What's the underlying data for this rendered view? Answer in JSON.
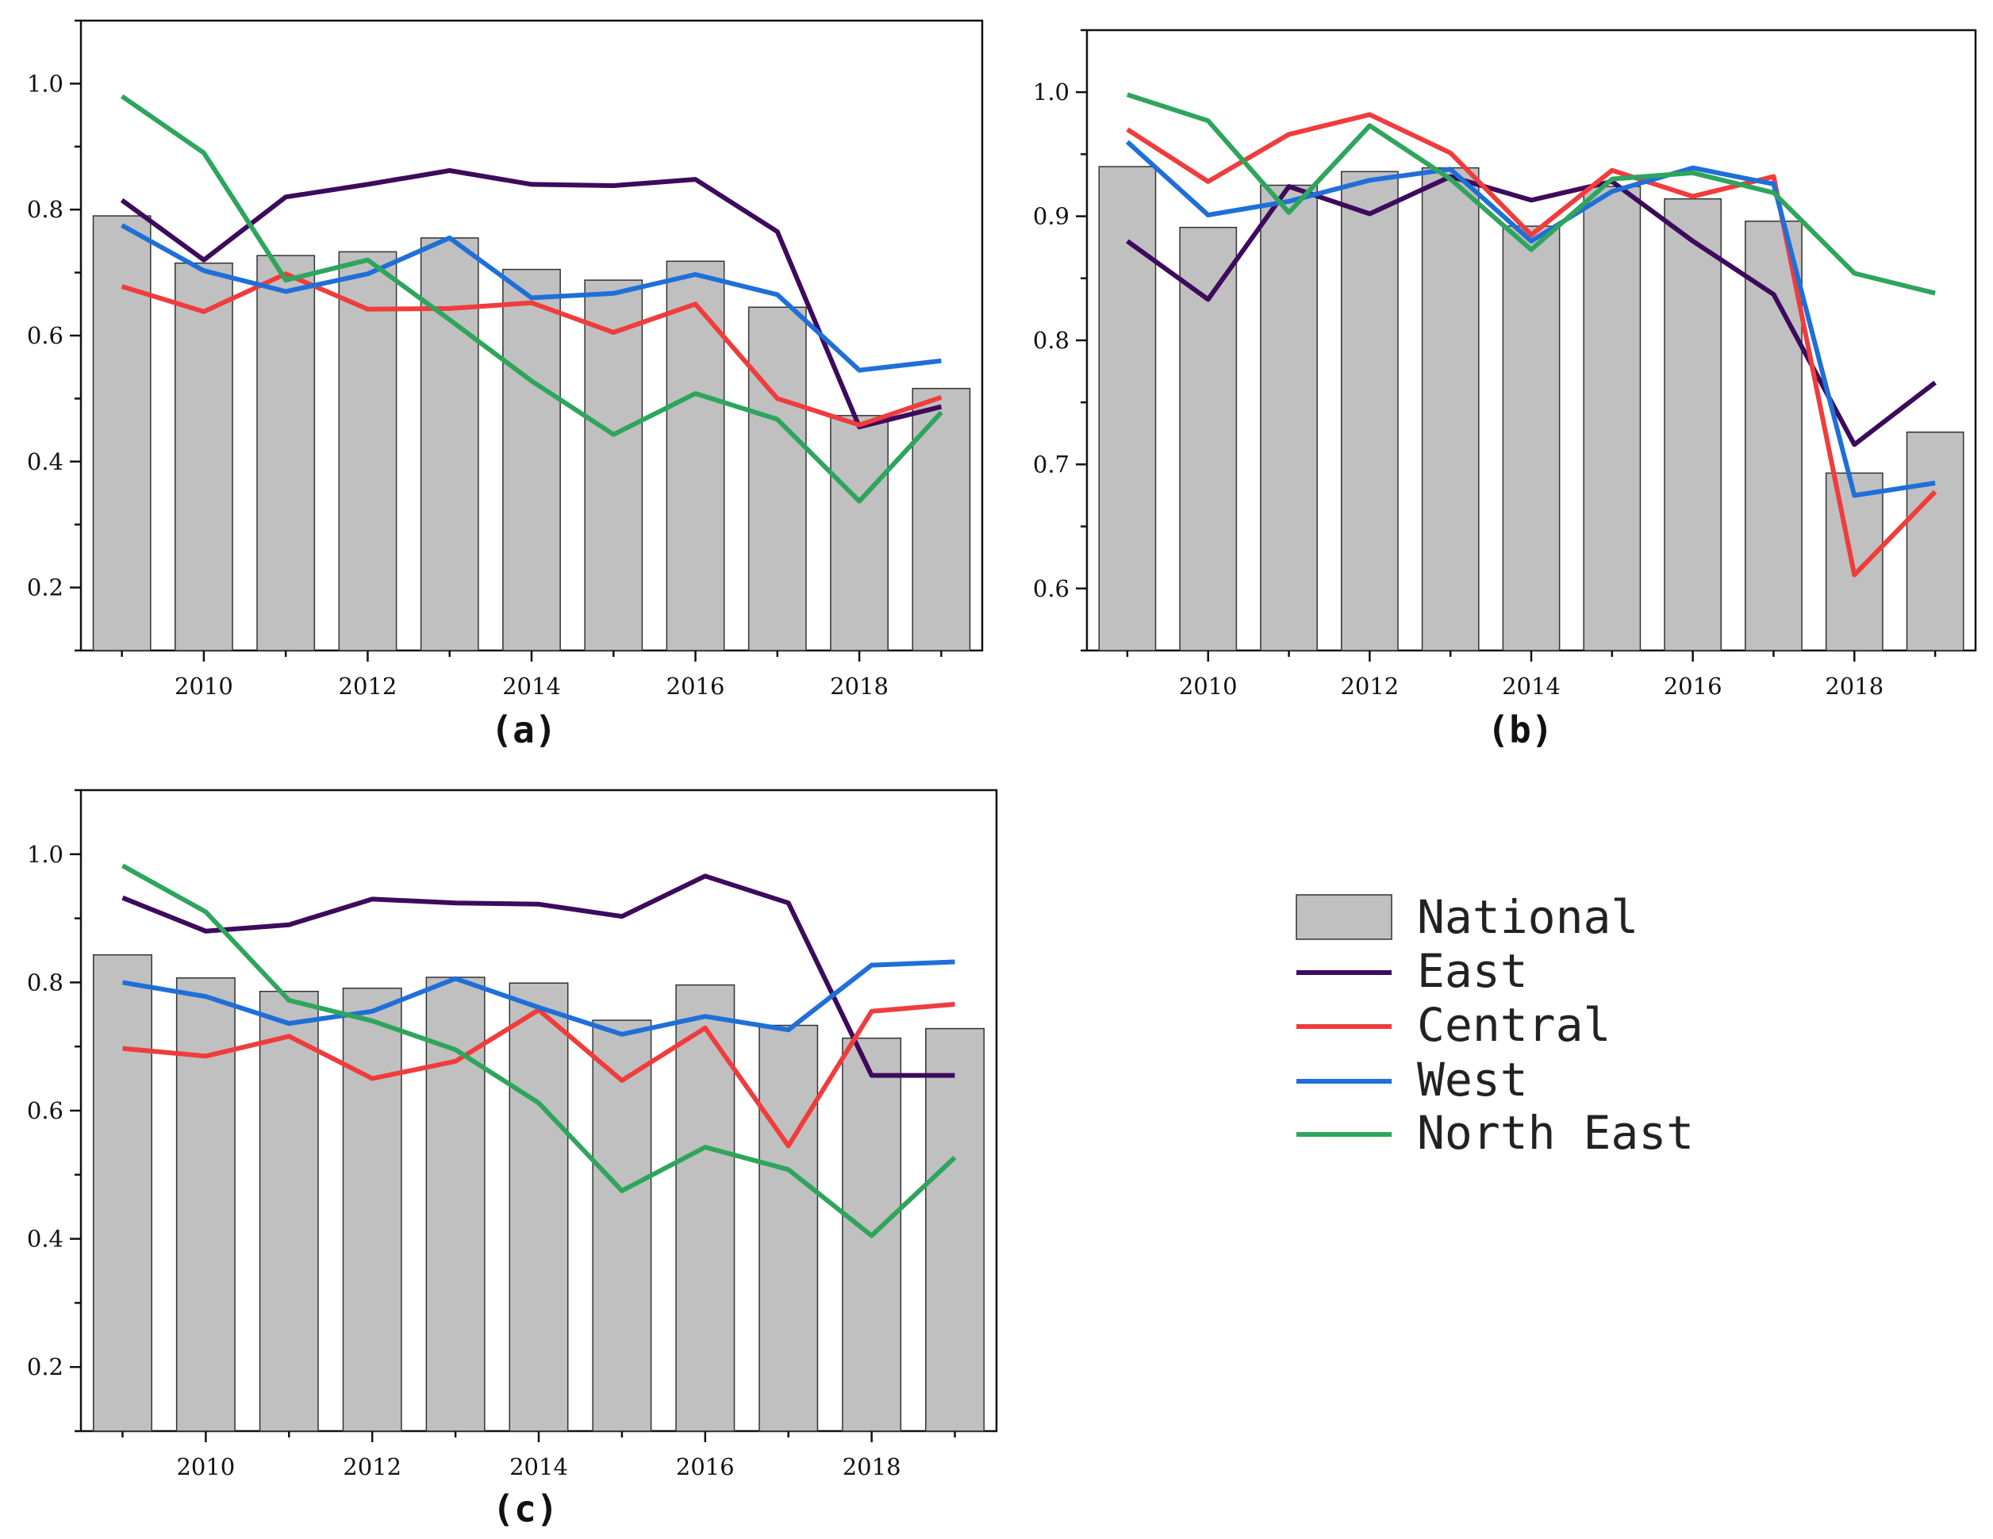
{
  "figure": {
    "panel_labels": [
      "(a)",
      "(b)",
      "(c)"
    ]
  },
  "legend": {
    "items": [
      {
        "label": "National",
        "kind": "bar",
        "color": "#c0c0c0"
      },
      {
        "label": "East",
        "kind": "line",
        "color": "#3d0a5c"
      },
      {
        "label": "Central",
        "kind": "line",
        "color": "#f03c3c"
      },
      {
        "label": "West",
        "kind": "line",
        "color": "#1f6fd8"
      },
      {
        "label": "North East",
        "kind": "line",
        "color": "#2ea55c"
      }
    ]
  },
  "chart_data": [
    {
      "type": "bar",
      "panel": "(a)",
      "x": [
        2009,
        2010,
        2011,
        2012,
        2013,
        2014,
        2015,
        2016,
        2017,
        2018,
        2019
      ],
      "ylim": [
        0.1,
        1.1
      ],
      "yticks": [
        0.2,
        0.4,
        0.6,
        0.8,
        1.0
      ],
      "ytick_labels": [
        "0.2",
        "0.4",
        "0.6",
        "0.8",
        "1.0"
      ],
      "xticks": [
        2010,
        2012,
        2014,
        2016,
        2018
      ],
      "xtick_labels": [
        "2010",
        "2012",
        "2014",
        "2016",
        "2018"
      ],
      "xlabel": "",
      "ylabel": "",
      "bars": {
        "name": "National",
        "color": "#c0c0c0",
        "values": [
          0.79,
          0.715,
          0.727,
          0.733,
          0.755,
          0.705,
          0.688,
          0.718,
          0.645,
          0.473,
          0.516
        ]
      },
      "series": [
        {
          "name": "East",
          "color": "#3d0a5c",
          "values": [
            0.815,
            0.72,
            0.82,
            0.84,
            0.862,
            0.84,
            0.838,
            0.848,
            0.765,
            0.455,
            0.487
          ]
        },
        {
          "name": "Central",
          "color": "#f03c3c",
          "values": [
            0.678,
            0.638,
            0.698,
            0.642,
            0.643,
            0.652,
            0.605,
            0.65,
            0.5,
            0.458,
            0.502
          ]
        },
        {
          "name": "West",
          "color": "#1f6fd8",
          "values": [
            0.775,
            0.703,
            0.67,
            0.698,
            0.755,
            0.66,
            0.667,
            0.697,
            0.665,
            0.545,
            0.56
          ]
        },
        {
          "name": "North East",
          "color": "#2ea55c",
          "values": [
            0.98,
            0.89,
            0.688,
            0.72,
            0.625,
            0.528,
            0.443,
            0.508,
            0.467,
            0.337,
            0.478
          ]
        }
      ]
    },
    {
      "type": "bar",
      "panel": "(b)",
      "x": [
        2009,
        2010,
        2011,
        2012,
        2013,
        2014,
        2015,
        2016,
        2017,
        2018,
        2019
      ],
      "ylim": [
        0.55,
        1.05
      ],
      "yticks": [
        0.6,
        0.7,
        0.8,
        0.9,
        1.0
      ],
      "ytick_labels": [
        "0.6",
        "0.7",
        "0.8",
        "0.9",
        "1.0"
      ],
      "xticks": [
        2010,
        2012,
        2014,
        2016,
        2018
      ],
      "xtick_labels": [
        "2010",
        "2012",
        "2014",
        "2016",
        "2018"
      ],
      "xlabel": "",
      "ylabel": "",
      "bars": {
        "name": "National",
        "color": "#c0c0c0",
        "values": [
          0.94,
          0.891,
          0.925,
          0.936,
          0.939,
          0.892,
          0.924,
          0.914,
          0.896,
          0.693,
          0.726
        ]
      },
      "series": [
        {
          "name": "East",
          "color": "#3d0a5c",
          "values": [
            0.88,
            0.833,
            0.924,
            0.902,
            0.932,
            0.913,
            0.928,
            0.88,
            0.837,
            0.716,
            0.766
          ]
        },
        {
          "name": "Central",
          "color": "#f03c3c",
          "values": [
            0.97,
            0.928,
            0.966,
            0.982,
            0.951,
            0.885,
            0.937,
            0.916,
            0.932,
            0.611,
            0.678
          ]
        },
        {
          "name": "West",
          "color": "#1f6fd8",
          "values": [
            0.96,
            0.901,
            0.912,
            0.929,
            0.938,
            0.88,
            0.92,
            0.939,
            0.926,
            0.675,
            0.685
          ]
        },
        {
          "name": "North East",
          "color": "#2ea55c",
          "values": [
            0.998,
            0.977,
            0.903,
            0.973,
            0.93,
            0.873,
            0.93,
            0.935,
            0.919,
            0.854,
            0.838
          ]
        }
      ]
    },
    {
      "type": "bar",
      "panel": "(c)",
      "x": [
        2009,
        2010,
        2011,
        2012,
        2013,
        2014,
        2015,
        2016,
        2017,
        2018,
        2019
      ],
      "ylim": [
        0.1,
        1.1
      ],
      "yticks": [
        0.2,
        0.4,
        0.6,
        0.8,
        1.0
      ],
      "ytick_labels": [
        "0.2",
        "0.4",
        "0.6",
        "0.8",
        "1.0"
      ],
      "xticks": [
        2010,
        2012,
        2014,
        2016,
        2018
      ],
      "xtick_labels": [
        "2010",
        "2012",
        "2014",
        "2016",
        "2018"
      ],
      "xlabel": "",
      "ylabel": "",
      "bars": {
        "name": "National",
        "color": "#c0c0c0",
        "values": [
          0.843,
          0.807,
          0.786,
          0.791,
          0.808,
          0.799,
          0.741,
          0.796,
          0.733,
          0.713,
          0.728
        ]
      },
      "series": [
        {
          "name": "East",
          "color": "#3d0a5c",
          "values": [
            0.932,
            0.88,
            0.89,
            0.93,
            0.924,
            0.922,
            0.903,
            0.966,
            0.924,
            0.655,
            0.655
          ]
        },
        {
          "name": "Central",
          "color": "#f03c3c",
          "values": [
            0.697,
            0.685,
            0.716,
            0.65,
            0.677,
            0.757,
            0.647,
            0.729,
            0.545,
            0.755,
            0.766
          ]
        },
        {
          "name": "West",
          "color": "#1f6fd8",
          "values": [
            0.8,
            0.778,
            0.736,
            0.755,
            0.806,
            0.761,
            0.719,
            0.747,
            0.726,
            0.827,
            0.832
          ]
        },
        {
          "name": "North East",
          "color": "#2ea55c",
          "values": [
            0.982,
            0.91,
            0.772,
            0.74,
            0.695,
            0.612,
            0.475,
            0.543,
            0.508,
            0.405,
            0.527
          ]
        }
      ]
    }
  ]
}
